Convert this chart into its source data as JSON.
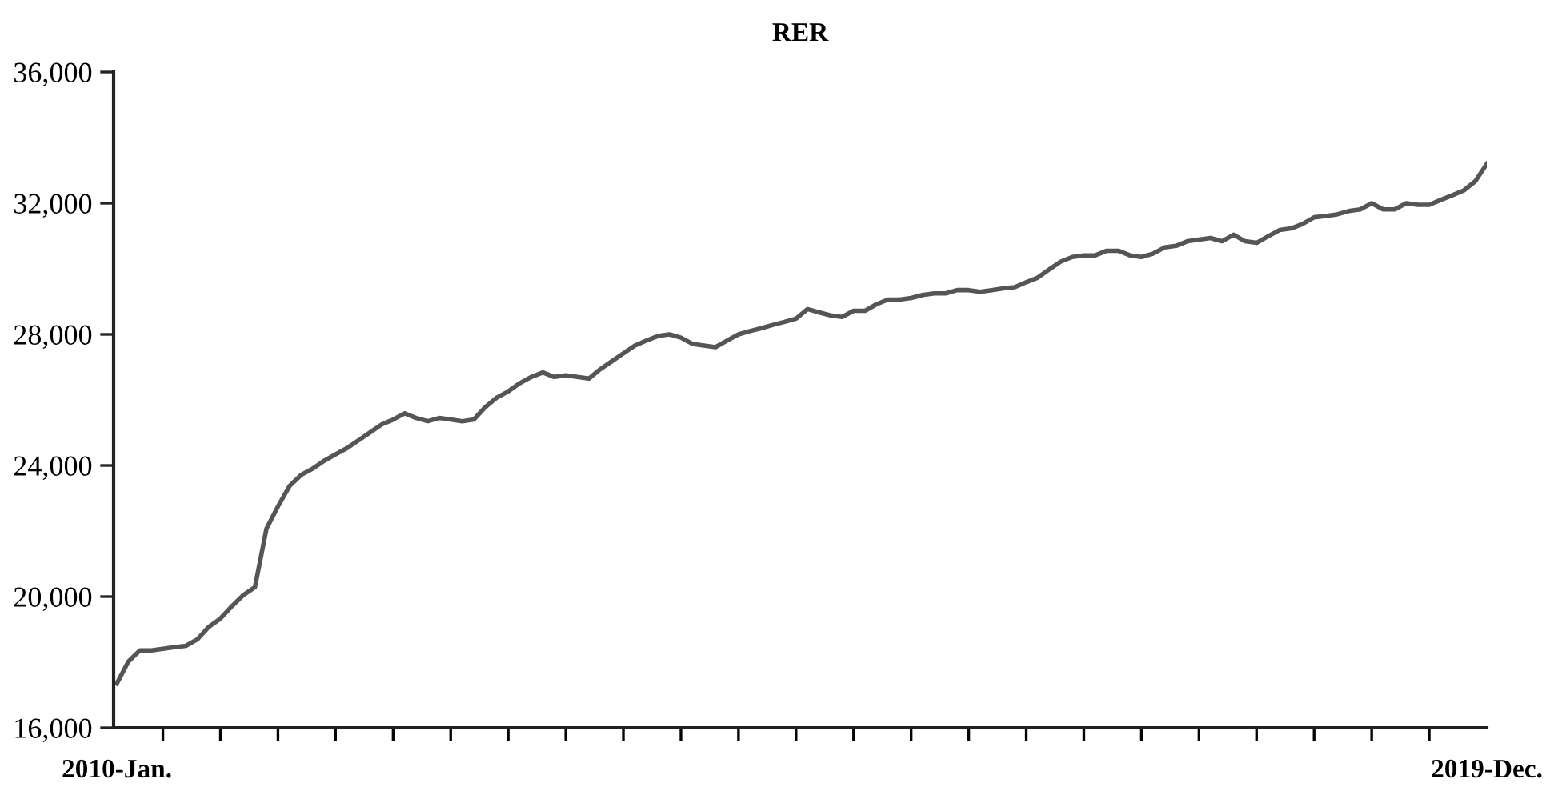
{
  "chart_data": {
    "type": "line",
    "title": "RER",
    "categories": [
      "2010-Jan.",
      null,
      null,
      null,
      null,
      null,
      null,
      null,
      null,
      null,
      null,
      null,
      null,
      null,
      null,
      null,
      null,
      null,
      null,
      null,
      null,
      null,
      null,
      null,
      null,
      null,
      null,
      null,
      null,
      null,
      null,
      null,
      null,
      null,
      null,
      null,
      null,
      null,
      null,
      null,
      null,
      null,
      null,
      null,
      null,
      null,
      null,
      null,
      null,
      null,
      null,
      null,
      null,
      null,
      null,
      null,
      null,
      null,
      null,
      null,
      null,
      null,
      null,
      null,
      null,
      null,
      null,
      null,
      null,
      null,
      null,
      null,
      null,
      null,
      null,
      null,
      null,
      null,
      null,
      null,
      null,
      null,
      null,
      null,
      null,
      null,
      null,
      null,
      null,
      null,
      null,
      null,
      null,
      null,
      null,
      null,
      null,
      null,
      null,
      null,
      null,
      null,
      null,
      null,
      null,
      null,
      null,
      null,
      null,
      null,
      null,
      null,
      null,
      null,
      null,
      null,
      null,
      null,
      null,
      "2019-Dec."
    ],
    "series": [
      {
        "color": "#555555",
        "values": [
          17350,
          18020,
          18360,
          18360,
          18410,
          18460,
          18500,
          18700,
          19080,
          19330,
          19710,
          20050,
          20290,
          22070,
          22750,
          23370,
          23710,
          23900,
          24140,
          24340,
          24530,
          24770,
          25010,
          25250,
          25400,
          25590,
          25450,
          25350,
          25450,
          25400,
          25350,
          25400,
          25780,
          26070,
          26260,
          26510,
          26700,
          26840,
          26700,
          26750,
          26700,
          26650,
          26940,
          27180,
          27420,
          27660,
          27810,
          27950,
          28000,
          27900,
          27710,
          27660,
          27610,
          27810,
          28000,
          28100,
          28190,
          28290,
          28380,
          28480,
          28770,
          28670,
          28580,
          28530,
          28720,
          28720,
          28920,
          29060,
          29060,
          29110,
          29200,
          29250,
          29250,
          29350,
          29350,
          29300,
          29350,
          29400,
          29440,
          29590,
          29730,
          29980,
          30220,
          30360,
          30410,
          30410,
          30550,
          30550,
          30410,
          30360,
          30460,
          30650,
          30700,
          30840,
          30890,
          30940,
          30840,
          31040,
          30840,
          30790,
          30990,
          31180,
          31230,
          31370,
          31570,
          31610,
          31660,
          31760,
          31810,
          32000,
          31810,
          31810,
          32000,
          31950,
          31950,
          32100,
          32240,
          32390,
          32670,
          33200
        ]
      }
    ],
    "ylim": [
      16000,
      36000
    ],
    "yticks": [
      {
        "value": 16000,
        "label": "16,000"
      },
      {
        "value": 20000,
        "label": "20,000"
      },
      {
        "value": 24000,
        "label": "24,000"
      },
      {
        "value": 28000,
        "label": "28,000"
      },
      {
        "value": 32000,
        "label": "32,000"
      },
      {
        "value": 36000,
        "label": "36,000"
      }
    ],
    "grid": false,
    "legend": false,
    "marker": "none",
    "line_style": "solid"
  }
}
